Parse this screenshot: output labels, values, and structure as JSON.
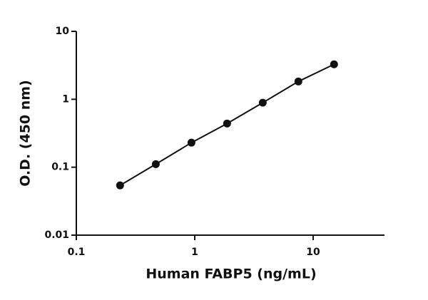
{
  "chart_data": {
    "type": "line",
    "x_label": "Human FABP5 (ng/mL)",
    "y_label": "O.D. (450 nm)",
    "x": [
      0.234,
      0.469,
      0.938,
      1.875,
      3.75,
      7.5,
      15
    ],
    "values": [
      0.054,
      0.111,
      0.23,
      0.44,
      0.89,
      1.83,
      3.27
    ],
    "color": "#111111",
    "xscale": "log",
    "yscale": "log",
    "xlim": [
      0.1,
      40
    ],
    "ylim": [
      0.01,
      10
    ],
    "xticks": [
      0.1,
      1,
      10
    ],
    "yticks": [
      0.01,
      0.1,
      1,
      10
    ],
    "grid": false,
    "markers": true
  }
}
